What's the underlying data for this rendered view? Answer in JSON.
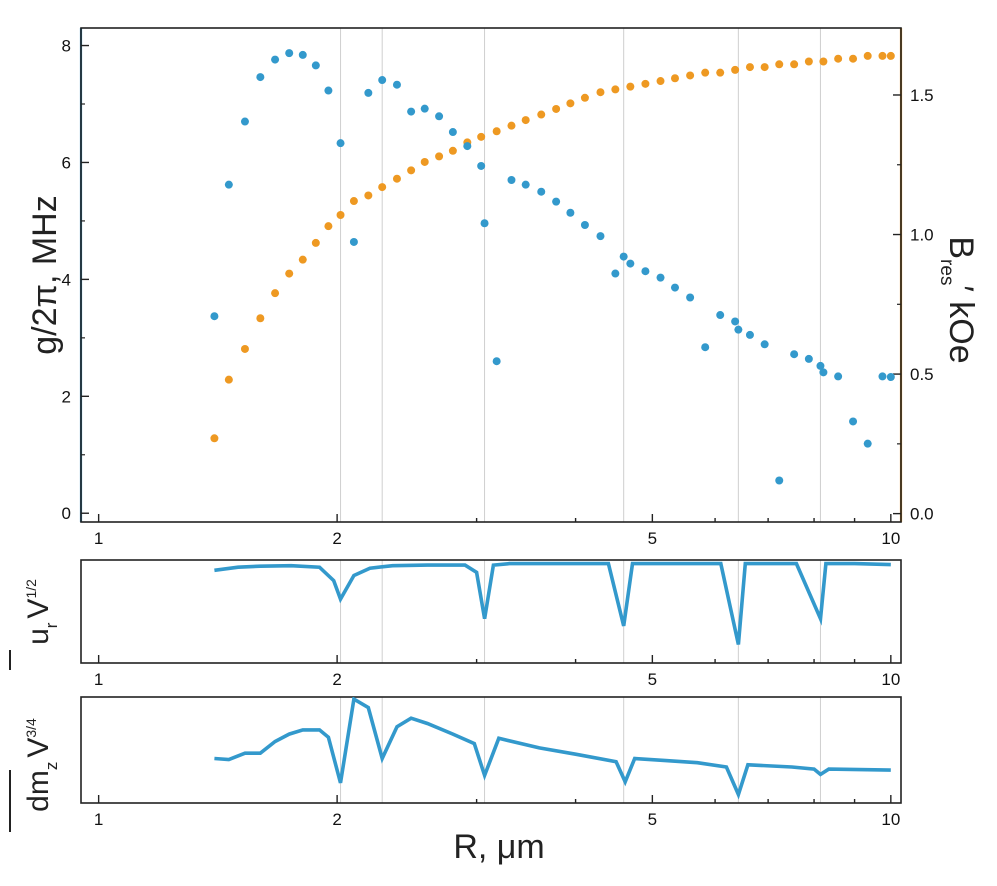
{
  "colors": {
    "g": "#3399cc",
    "b": "#ee9922",
    "line": "#3399cc",
    "grid": "#cfcfcf"
  },
  "chart_data": [
    {
      "type": "scatter",
      "xscale": "log",
      "xlim": [
        0.95,
        10.3
      ],
      "x_ticks": [
        1,
        2,
        5,
        10
      ],
      "x_tick_labels": [
        "1",
        "2",
        "5",
        "10"
      ],
      "vlines": [
        2.02,
        2.28,
        3.07,
        4.6,
        6.42,
        8.15
      ],
      "left_axis": {
        "label": "g/2π, MHz",
        "ylim": [
          -0.15,
          8.3
        ],
        "ticks": [
          0,
          2,
          4,
          6,
          8
        ],
        "tick_labels": [
          "0",
          "2",
          "4",
          "6",
          "8"
        ]
      },
      "right_axis": {
        "label_main": "B",
        "label_sub": "res",
        "label_rest": "′ kOe",
        "ylim": [
          -0.03,
          1.74
        ],
        "ticks": [
          0.0,
          0.5,
          1.0,
          1.5
        ],
        "tick_labels": [
          "0.0",
          "0.5",
          "1.0",
          "1.5"
        ]
      },
      "series": [
        {
          "axis": "left",
          "x": [
            1.4,
            1.46,
            1.53,
            1.6,
            1.67,
            1.74,
            1.81,
            1.88,
            1.95,
            2.02,
            2.1,
            2.19,
            2.28,
            2.38,
            2.48,
            2.58,
            2.69,
            2.8,
            2.92,
            3.04,
            3.07,
            3.18,
            3.32,
            3.46,
            3.62,
            3.78,
            3.94,
            4.11,
            4.3,
            4.49,
            4.6,
            4.69,
            4.9,
            5.12,
            5.34,
            5.58,
            5.83,
            6.09,
            6.36,
            6.42,
            6.64,
            6.93,
            7.23,
            7.55,
            7.88,
            8.15,
            8.22,
            8.58,
            8.96,
            9.35,
            9.76,
            10.0
          ],
          "y": [
            3.37,
            5.62,
            6.7,
            7.46,
            7.76,
            7.87,
            7.84,
            7.66,
            7.23,
            6.33,
            4.64,
            7.19,
            7.41,
            7.33,
            6.87,
            6.92,
            6.79,
            6.52,
            6.28,
            5.94,
            4.96,
            2.6,
            5.7,
            5.62,
            5.5,
            5.33,
            5.14,
            4.93,
            4.74,
            4.1,
            4.39,
            4.27,
            4.14,
            4.03,
            3.86,
            3.69,
            2.84,
            3.39,
            3.28,
            3.14,
            3.05,
            2.89,
            0.56,
            2.72,
            2.64,
            2.52,
            2.41,
            2.34,
            1.57,
            1.19,
            2.34,
            2.33
          ]
        },
        {
          "axis": "right",
          "x": [
            1.4,
            1.46,
            1.53,
            1.6,
            1.67,
            1.74,
            1.81,
            1.88,
            1.95,
            2.02,
            2.1,
            2.19,
            2.28,
            2.38,
            2.48,
            2.58,
            2.69,
            2.8,
            2.92,
            3.04,
            3.18,
            3.32,
            3.46,
            3.62,
            3.78,
            3.94,
            4.11,
            4.3,
            4.49,
            4.69,
            4.9,
            5.12,
            5.34,
            5.58,
            5.83,
            6.09,
            6.36,
            6.64,
            6.93,
            7.23,
            7.55,
            7.88,
            8.22,
            8.58,
            8.96,
            9.35,
            9.76,
            10.0
          ],
          "y": [
            0.27,
            0.48,
            0.59,
            0.7,
            0.79,
            0.86,
            0.91,
            0.97,
            1.03,
            1.07,
            1.12,
            1.14,
            1.17,
            1.2,
            1.23,
            1.26,
            1.28,
            1.3,
            1.33,
            1.35,
            1.37,
            1.39,
            1.41,
            1.43,
            1.45,
            1.47,
            1.49,
            1.51,
            1.52,
            1.53,
            1.54,
            1.55,
            1.56,
            1.57,
            1.58,
            1.58,
            1.59,
            1.6,
            1.6,
            1.61,
            1.61,
            1.62,
            1.62,
            1.63,
            1.63,
            1.64,
            1.64,
            1.64
          ]
        }
      ]
    },
    {
      "type": "line",
      "xscale": "log",
      "xlim": [
        0.95,
        10.3
      ],
      "ylim": [
        0,
        1
      ],
      "x_ticks": [
        1,
        2,
        5,
        10
      ],
      "x_tick_labels": [
        "1",
        "2",
        "5",
        "10"
      ],
      "ylabel_parts": {
        "main": "u",
        "sub": "r",
        "mid": "V",
        "sup": "1/2"
      },
      "series": [
        {
          "x": [
            1.4,
            1.5,
            1.6,
            1.75,
            1.9,
            1.98,
            2.02,
            2.1,
            2.2,
            2.35,
            2.6,
            2.9,
            3.0,
            3.07,
            3.15,
            3.3,
            3.6,
            4.0,
            4.4,
            4.6,
            4.72,
            5.0,
            5.5,
            6.1,
            6.42,
            6.55,
            7.0,
            7.6,
            8.15,
            8.28,
            9.0,
            10.0
          ],
          "y": [
            0.9,
            0.93,
            0.94,
            0.945,
            0.93,
            0.8,
            0.62,
            0.85,
            0.92,
            0.945,
            0.95,
            0.95,
            0.88,
            0.43,
            0.95,
            0.965,
            0.965,
            0.965,
            0.965,
            0.36,
            0.965,
            0.965,
            0.965,
            0.965,
            0.18,
            0.965,
            0.965,
            0.965,
            0.43,
            0.965,
            0.965,
            0.955
          ]
        }
      ]
    },
    {
      "type": "line",
      "xscale": "log",
      "xlim": [
        0.95,
        10.3
      ],
      "ylim": [
        0,
        1
      ],
      "x_ticks": [
        1,
        2,
        5,
        10
      ],
      "x_tick_labels": [
        "1",
        "2",
        "5",
        "10"
      ],
      "xlabel": "R, μm",
      "ylabel_parts": {
        "main": "dm",
        "sub": "z",
        "mid": "V",
        "sup": "3/4"
      },
      "series": [
        {
          "x": [
            1.4,
            1.46,
            1.53,
            1.6,
            1.67,
            1.74,
            1.81,
            1.9,
            1.95,
            2.02,
            2.1,
            2.19,
            2.28,
            2.38,
            2.48,
            2.6,
            2.8,
            2.98,
            3.07,
            3.2,
            3.6,
            4.0,
            4.5,
            4.62,
            4.75,
            5.2,
            5.7,
            6.2,
            6.42,
            6.6,
            7.5,
            8.0,
            8.15,
            8.35,
            10.0
          ],
          "y": [
            0.42,
            0.41,
            0.47,
            0.47,
            0.58,
            0.65,
            0.69,
            0.69,
            0.62,
            0.19,
            0.98,
            0.9,
            0.42,
            0.72,
            0.8,
            0.75,
            0.65,
            0.56,
            0.26,
            0.61,
            0.52,
            0.46,
            0.39,
            0.2,
            0.42,
            0.4,
            0.38,
            0.34,
            0.08,
            0.36,
            0.34,
            0.32,
            0.27,
            0.32,
            0.31
          ]
        }
      ]
    }
  ]
}
